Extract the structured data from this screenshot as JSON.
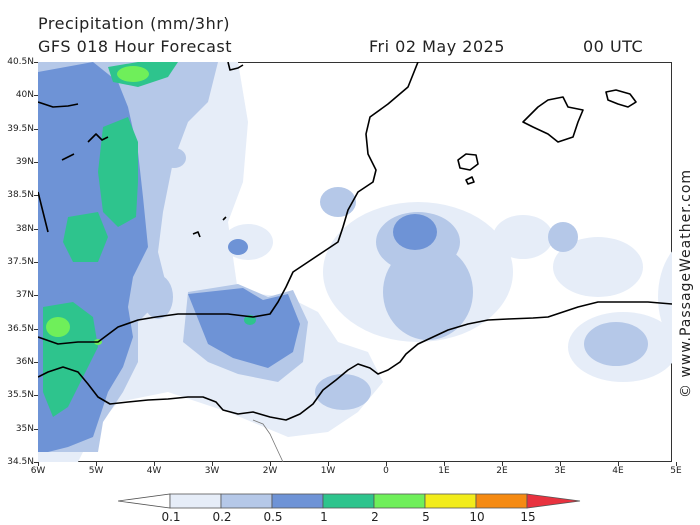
{
  "header": {
    "title": "Precipitation (mm/3hr)",
    "model": "GFS 018 Hour Forecast",
    "date": "Fri 02 May 2025",
    "time": "00 UTC"
  },
  "map": {
    "lat_labels": [
      "40.5N",
      "40N",
      "39.5N",
      "39N",
      "38.5N",
      "38N",
      "37.5N",
      "37N",
      "36.5N",
      "36N",
      "35.5N",
      "35N",
      "34.5N"
    ],
    "lon_labels": [
      "6W",
      "5W",
      "4W",
      "3W",
      "2W",
      "1W",
      "0",
      "1E",
      "2E",
      "3E",
      "4E",
      "5E"
    ]
  },
  "credit": "© www.PassageWeather.com",
  "legend": {
    "labels": [
      "0.1",
      "0.2",
      "0.5",
      "1",
      "2",
      "5",
      "10",
      "15"
    ],
    "colors": [
      "#ffffff",
      "#e6edf8",
      "#b5c8e8",
      "#6e93d6",
      "#2ec48d",
      "#6fef5a",
      "#f2ec1a",
      "#f58a12",
      "#e8323f"
    ]
  }
}
